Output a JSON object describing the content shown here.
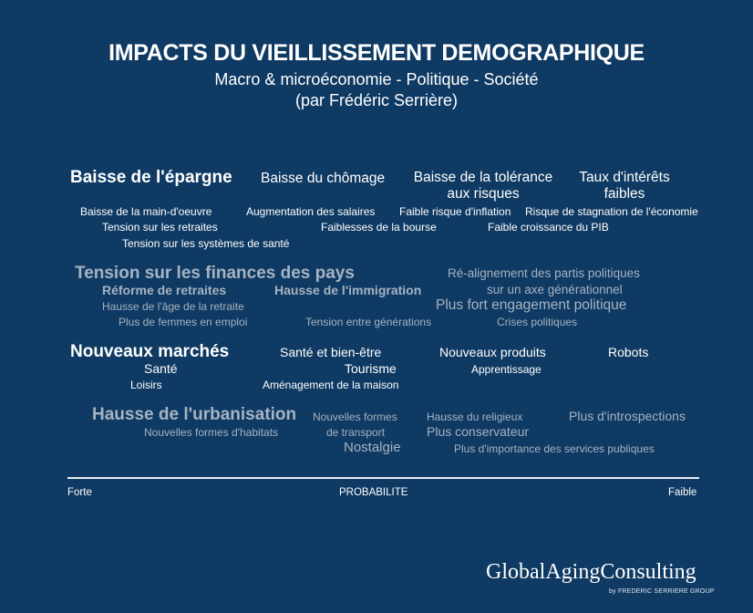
{
  "header": {
    "title": "IMPACTS DU VIEILLISSEMENT DEMOGRAPHIQUE",
    "subtitle": "Macro & microéconomie - Politique - Société",
    "author": "(par Frédéric Serrière)"
  },
  "economie": {
    "heading": "Baisse de l'épargne",
    "chomage": "Baisse du chômage",
    "tolerance_1": "Baisse de la tolérance",
    "tolerance_2": "aux risques",
    "taux_1": "Taux d'intérêts",
    "taux_2": "faibles",
    "main_oeuvre": "Baisse de la main-d'oeuvre",
    "salaires": "Augmentation des salaires",
    "inflation": "Faible risque d'inflation",
    "stagnation": "Risque de stagnation de l'économie",
    "retraites": "Tension sur les retraites",
    "bourse": "Faiblesses de la bourse",
    "pib": "Faible croissance du PIB",
    "sante": "Tension sur les systèmes de santé"
  },
  "politique": {
    "heading": "Tension sur les finances des pays",
    "realignement": "Ré-alignement des partis politiques",
    "reforme": "Réforme de retraites",
    "immigration": "Hausse de l'immigration",
    "axe": "sur un axe générationnel",
    "age_retraite": "Hausse de l'âge de la retraite",
    "engagement": "Plus fort engagement politique",
    "femmes": "Plus de femmes en emploi",
    "generations": "Tension entre générations",
    "crises": "Crises politiques"
  },
  "marches": {
    "heading": "Nouveaux marchés",
    "bien_etre": "Santé et bien-être",
    "produits": "Nouveaux produits",
    "robots": "Robots",
    "sante": "Santé",
    "tourisme": "Tourisme",
    "apprentissage": "Apprentissage",
    "loisirs": "Loisirs",
    "maison": "Aménagement de la maison"
  },
  "societe": {
    "heading": "Hausse de l'urbanisation",
    "transport_1": "Nouvelles formes",
    "transport_2": "de transport",
    "religieux": "Hausse du religieux",
    "introspection": "Plus d'introspections",
    "habitats": "Nouvelles formes d'habitats",
    "conservateur": "Plus conservateur",
    "nostalgie": "Nostalgie",
    "services": "Plus d'importance des services publiques"
  },
  "axis": {
    "left": "Forte",
    "center": "PROBABILITE",
    "right": "Faible"
  },
  "brand": {
    "name": "GlobalAgingConsulting",
    "tagline": "by FREDERIC SERRIERE GROUP"
  },
  "colors": {
    "background": "#0f3a63",
    "primary_text": "#ffffff",
    "secondary_text": "#a6b3c2"
  }
}
